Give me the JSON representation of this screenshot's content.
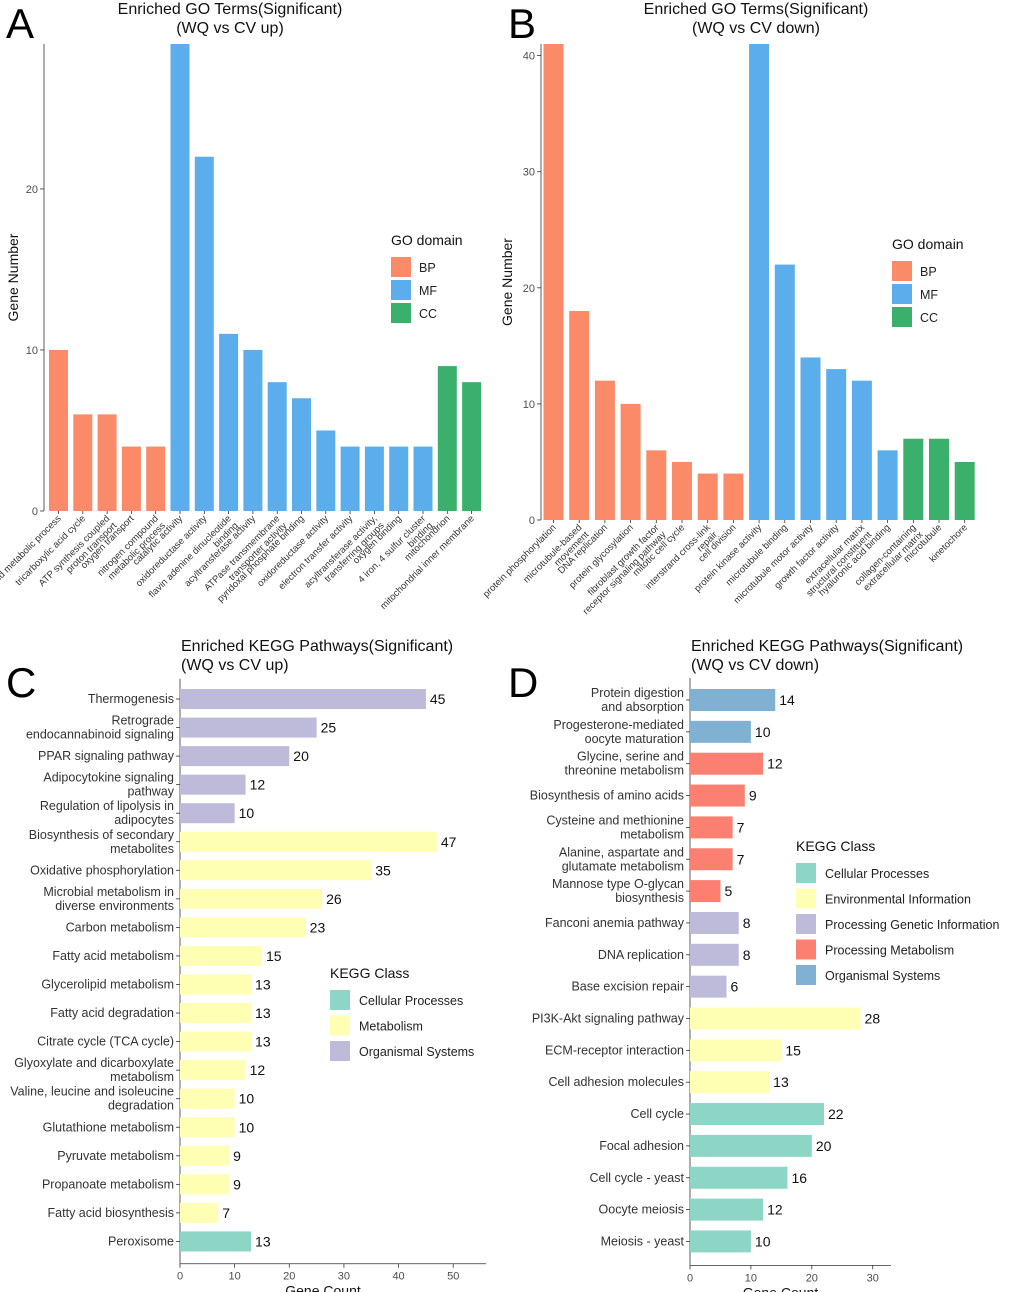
{
  "colors": {
    "BP": "#FA8A68",
    "MF": "#5BAEEB",
    "CC": "#3BB06D",
    "Cellular Processes": "#8DD6C6",
    "Metabolism": "#FFFFB3",
    "Environmental Information": "#FFFFB3",
    "Organismal Systems": "#BEBADA",
    "Processing Genetic Information": "#BEBADA",
    "Processing Metabolism": "#FB8072",
    "Organismal Systems D": "#80B1D3"
  },
  "chart_data": [
    {
      "id": "A",
      "type": "bar",
      "panel_letter": "A",
      "title": "Enriched GO Terms(Significant)",
      "subtitle": "(WQ vs CV up)",
      "xlabel": "",
      "ylabel": "Gene Number",
      "ylim": [
        0,
        29
      ],
      "yticks": [
        0,
        10,
        20
      ],
      "legend_title": "GO domain",
      "legend": [
        "BP",
        "MF",
        "CC"
      ],
      "categories": [
        "lipid metabolic process",
        "tricarboxylic acid cycle",
        "ATP synthesis coupled\nproton transport",
        "oxygen transport",
        "nitrogen compound\nmetabolic process",
        "catalytic activity",
        "oxidoreductase activity",
        "flavin adenine dinucleotide\nbinding",
        "acyltransferase activity",
        "ATPase transmembrane\ntransporter activity",
        "pyridoxal phosphate binding",
        "oxidoreductase activity",
        "electron transfer activity",
        "acyltransferase activity,\ntransferring groups",
        "oxygen binding",
        "4 iron, 4 sulfur cluster\nbinding",
        "mitochondrion",
        "mitochondrial inner membrane"
      ],
      "values": [
        10,
        6,
        6,
        4,
        4,
        29,
        22,
        11,
        10,
        8,
        7,
        5,
        4,
        4,
        4,
        4,
        9,
        8
      ],
      "groups": [
        "BP",
        "BP",
        "BP",
        "BP",
        "BP",
        "MF",
        "MF",
        "MF",
        "MF",
        "MF",
        "MF",
        "MF",
        "MF",
        "MF",
        "MF",
        "MF",
        "CC",
        "CC"
      ]
    },
    {
      "id": "B",
      "type": "bar",
      "panel_letter": "B",
      "title": "Enriched GO Terms(Significant)",
      "subtitle": "(WQ vs CV down)",
      "xlabel": "",
      "ylabel": "Gene Number",
      "ylim": [
        0,
        41
      ],
      "yticks": [
        0,
        10,
        20,
        30,
        40
      ],
      "legend_title": "GO domain",
      "legend": [
        "BP",
        "MF",
        "CC"
      ],
      "categories": [
        "protein phosphorylation",
        "microtubule-based\nmovement",
        "DNA replication",
        "protein glycosylation",
        "fibroblast growth factor\nreceptor signaling pathway",
        "mitotic cell cycle",
        "interstrand cross-link\nrepair",
        "cell division",
        "protein kinase activity",
        "microtubule binding",
        "microtubule motor activity",
        "growth factor activity",
        "extracellular matrix\nstructural constituent",
        "hyaluronic acid binding",
        "collagen-containing\nextracellular matrix",
        "microtubule",
        "kinetochore"
      ],
      "values": [
        41,
        18,
        12,
        10,
        6,
        5,
        4,
        4,
        41,
        22,
        14,
        13,
        12,
        6,
        7,
        7,
        5
      ],
      "groups": [
        "BP",
        "BP",
        "BP",
        "BP",
        "BP",
        "BP",
        "BP",
        "BP",
        "MF",
        "MF",
        "MF",
        "MF",
        "MF",
        "MF",
        "CC",
        "CC",
        "CC"
      ]
    },
    {
      "id": "C",
      "type": "bar",
      "orientation": "horizontal",
      "panel_letter": "C",
      "title": "Enriched KEGG Pathways(Significant)",
      "subtitle": "(WQ vs CV up)",
      "xlabel": "Gene Count",
      "ylabel": "",
      "xlim": [
        0,
        56
      ],
      "xticks": [
        0,
        10,
        20,
        30,
        40,
        50
      ],
      "legend_title": "KEGG Class",
      "legend": [
        "Cellular Processes",
        "Metabolism",
        "Organismal Systems"
      ],
      "categories": [
        "Thermogenesis",
        "Retrograde\nendocannabinoid signaling",
        "PPAR signaling pathway",
        "Adipocytokine signaling\npathway",
        "Regulation of lipolysis in\nadipocytes",
        "Biosynthesis of secondary\nmetabolites",
        "Oxidative phosphorylation",
        "Microbial metabolism in\ndiverse environments",
        "Carbon metabolism",
        "Fatty acid metabolism",
        "Glycerolipid metabolism",
        "Fatty acid degradation",
        "Citrate cycle (TCA cycle)",
        "Glyoxylate and dicarboxylate\nmetabolism",
        "Valine, leucine and isoleucine\ndegradation",
        "Glutathione metabolism",
        "Pyruvate metabolism",
        "Propanoate metabolism",
        "Fatty acid biosynthesis",
        "Peroxisome"
      ],
      "values": [
        45,
        25,
        20,
        12,
        10,
        47,
        35,
        26,
        23,
        15,
        13,
        13,
        13,
        12,
        10,
        10,
        9,
        9,
        7,
        13
      ],
      "value_labels": [
        "45",
        "25",
        "20",
        "12",
        "10",
        "47",
        "35",
        "26",
        "23",
        "15",
        "13",
        "13",
        "13",
        "12",
        "10",
        "10",
        "9",
        "9",
        "7",
        "13"
      ],
      "groups": [
        "Organismal Systems",
        "Organismal Systems",
        "Organismal Systems",
        "Organismal Systems",
        "Organismal Systems",
        "Metabolism",
        "Metabolism",
        "Metabolism",
        "Metabolism",
        "Metabolism",
        "Metabolism",
        "Metabolism",
        "Metabolism",
        "Metabolism",
        "Metabolism",
        "Metabolism",
        "Metabolism",
        "Metabolism",
        "Metabolism",
        "Cellular Processes"
      ]
    },
    {
      "id": "D",
      "type": "bar",
      "orientation": "horizontal",
      "panel_letter": "D",
      "title": "Enriched KEGG Pathways(Significant)",
      "subtitle": "(WQ vs CV down)",
      "xlabel": "Gene Count",
      "ylabel": "",
      "xlim": [
        0,
        33
      ],
      "xticks": [
        0,
        10,
        20,
        30
      ],
      "legend_title": "KEGG Class",
      "legend": [
        "Cellular Processes",
        "Environmental Information",
        "Processing Genetic Information",
        "Processing Metabolism",
        "Organismal Systems"
      ],
      "categories": [
        "Protein digestion\nand absorption",
        "Progesterone-mediated\noocyte maturation",
        "Glycine, serine and\nthreonine metabolism",
        "Biosynthesis of amino acids",
        "Cysteine and methionine\nmetabolism",
        "Alanine, aspartate and\nglutamate metabolism",
        "Mannose type O-glycan\nbiosynthesis",
        "Fanconi anemia pathway",
        "DNA replication",
        "Base excision repair",
        "PI3K-Akt signaling pathway",
        "ECM-receptor interaction",
        "Cell adhesion molecules",
        "Cell cycle",
        "Focal adhesion",
        "Cell cycle - yeast",
        "Oocyte meiosis",
        "Meiosis - yeast"
      ],
      "values": [
        14,
        10,
        12,
        9,
        7,
        7,
        5,
        8,
        8,
        6,
        28,
        15,
        13,
        22,
        20,
        16,
        12,
        10
      ],
      "value_labels": [
        "14",
        "10",
        "12",
        "9",
        "7",
        "7",
        "5",
        "8",
        "8",
        "6",
        "28",
        "15",
        "13",
        "22",
        "20",
        "16",
        "12",
        "10"
      ],
      "groups": [
        "Organismal Systems D",
        "Organismal Systems D",
        "Processing Metabolism",
        "Processing Metabolism",
        "Processing Metabolism",
        "Processing Metabolism",
        "Processing Metabolism",
        "Processing Genetic Information",
        "Processing Genetic Information",
        "Processing Genetic Information",
        "Environmental Information",
        "Environmental Information",
        "Environmental Information",
        "Cellular Processes",
        "Cellular Processes",
        "Cellular Processes",
        "Cellular Processes",
        "Cellular Processes"
      ],
      "legend_color_keys": [
        "Cellular Processes",
        "Environmental Information",
        "Processing Genetic Information",
        "Processing Metabolism",
        "Organismal Systems D"
      ]
    }
  ]
}
